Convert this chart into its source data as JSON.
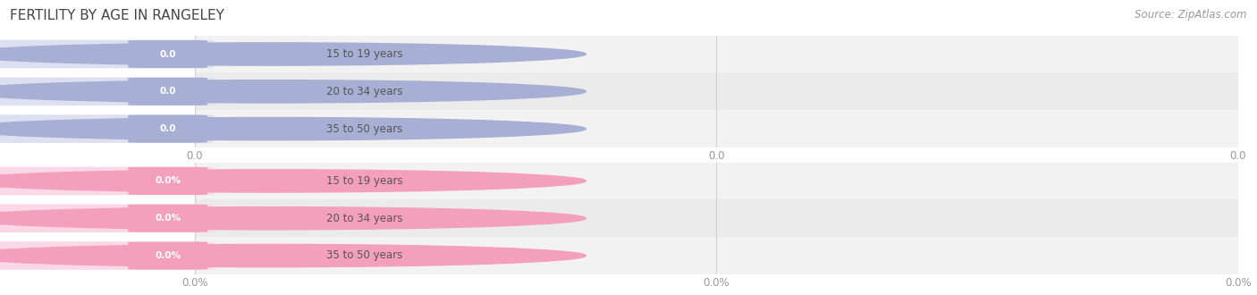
{
  "title": "FERTILITY BY AGE IN RANGELEY",
  "source_text": "Source: ZipAtlas.com",
  "top_section": {
    "categories": [
      "15 to 19 years",
      "20 to 34 years",
      "35 to 50 years"
    ],
    "values": [
      0.0,
      0.0,
      0.0
    ],
    "bar_color": "#a8afd4",
    "label_bg": "#dce0f0",
    "value_format": "0.0",
    "tick_labels": [
      "0.0",
      "0.0",
      "0.0"
    ]
  },
  "bottom_section": {
    "categories": [
      "15 to 19 years",
      "20 to 34 years",
      "35 to 50 years"
    ],
    "values": [
      0.0,
      0.0,
      0.0
    ],
    "bar_color": "#f4a0bc",
    "label_bg": "#fad8e8",
    "value_format": "0.0%",
    "tick_labels": [
      "0.0%",
      "0.0%",
      "0.0%"
    ]
  },
  "bg_color": "#ffffff",
  "row_colors": [
    "#f0f0f0",
    "#e8e8e8",
    "#f0f0f0"
  ],
  "title_fontsize": 11,
  "source_fontsize": 8.5,
  "tick_fontsize": 8.5,
  "cat_fontsize": 8.5,
  "val_fontsize": 7.5
}
